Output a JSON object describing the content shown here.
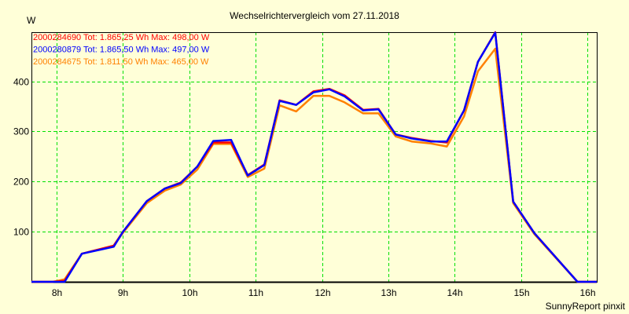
{
  "chart_data": {
    "type": "line",
    "title": "Wechselrichtervergleich vom 27.11.2018",
    "ylabel": "W",
    "xlabel": "",
    "footer": "SunnyReport pinxit",
    "xlim": [
      7.62,
      16.14
    ],
    "ylim": [
      0,
      498
    ],
    "grid": true,
    "x_ticks": [
      {
        "v": 8,
        "label": "8h"
      },
      {
        "v": 9,
        "label": "9h"
      },
      {
        "v": 10,
        "label": "10h"
      },
      {
        "v": 11,
        "label": "11h"
      },
      {
        "v": 12,
        "label": "12h"
      },
      {
        "v": 13,
        "label": "13h"
      },
      {
        "v": 14,
        "label": "14h"
      },
      {
        "v": 15,
        "label": "15h"
      },
      {
        "v": 16,
        "label": "16h"
      }
    ],
    "y_ticks": [
      {
        "v": 100,
        "label": "100"
      },
      {
        "v": 200,
        "label": "200"
      },
      {
        "v": 300,
        "label": "300"
      },
      {
        "v": 400,
        "label": "400"
      }
    ],
    "legend_placement": "top-left",
    "x": [
      7.62,
      7.94,
      8.12,
      8.38,
      8.86,
      9.0,
      9.36,
      9.63,
      9.87,
      10.12,
      10.36,
      10.63,
      10.88,
      11.13,
      11.36,
      11.61,
      11.87,
      12.11,
      12.34,
      12.62,
      12.85,
      13.11,
      13.35,
      13.64,
      13.88,
      14.14,
      14.35,
      14.61,
      14.88,
      15.2,
      15.85,
      16.14
    ],
    "series": [
      {
        "name": "2000284690",
        "legend": "2000284690 Tot: 1.865,25 Wh Max: 498,00 W",
        "color": "#ff0000",
        "values": [
          0,
          0,
          2,
          56,
          72,
          100,
          161,
          186,
          198,
          230,
          278,
          278,
          213,
          234,
          362,
          353,
          380,
          385,
          372,
          343,
          345,
          294,
          287,
          281,
          278,
          342,
          439,
          498,
          160,
          97,
          0,
          0
        ]
      },
      {
        "name": "2000280879",
        "legend": "2000280879 Tot: 1.865,50 Wh Max: 497,00 W",
        "color": "#0000ff",
        "values": [
          0,
          0,
          0,
          56,
          70,
          100,
          161,
          186,
          197,
          230,
          281,
          283,
          212,
          233,
          361,
          353,
          378,
          384,
          370,
          342,
          344,
          294,
          286,
          280,
          280,
          342,
          439,
          497,
          160,
          97,
          0,
          0
        ]
      },
      {
        "name": "2000284675",
        "legend": "2000284675 Tot: 1.811,50 Wh Max: 465,00 W",
        "color": "#ff8000",
        "values": [
          0,
          0,
          5,
          56,
          72,
          98,
          157,
          182,
          194,
          224,
          275,
          275,
          209,
          226,
          352,
          340,
          371,
          371,
          358,
          336,
          336,
          290,
          280,
          276,
          270,
          330,
          420,
          465,
          157,
          95,
          0,
          0
        ]
      }
    ]
  },
  "colors": {
    "background": "#ffffd8",
    "grid": "#00e000",
    "axis": "#000000"
  }
}
